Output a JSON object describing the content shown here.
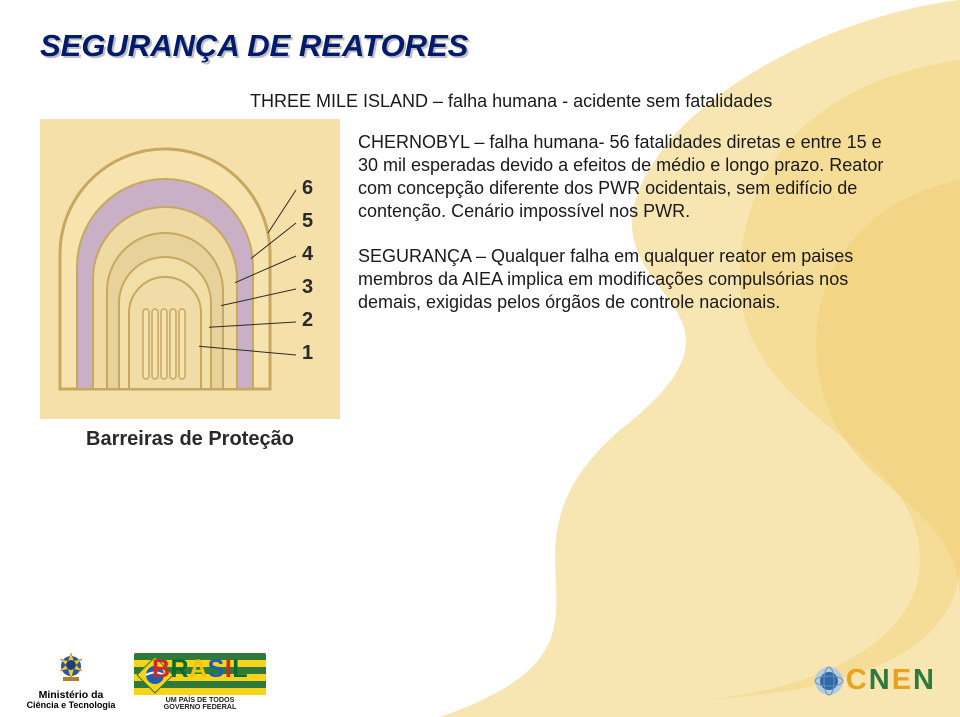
{
  "title": "SEGURANÇA DE REATORES",
  "intro": "THREE MILE ISLAND – falha humana - acidente sem fatalidades",
  "para1": "CHERNOBYL – falha humana- 56 fatalidades diretas e entre 15 e 30 mil esperadas devido a efeitos de médio e longo prazo. Reator com concepção diferente dos PWR ocidentais, sem edifício de contenção. Cenário impossível nos PWR.",
  "para2": "SEGURANÇA – Qualquer falha em qualquer reator em paises membros da AIEA implica em modificações compulsórias nos demais, exigidas pelos órgãos de controle nacionais.",
  "diagram": {
    "caption": "Barreiras de Proteção",
    "bg": "#f4e0a8",
    "outline": "#c8a860",
    "barriers": [
      {
        "fill": "#f6e3ad",
        "num": "6"
      },
      {
        "fill": "#c9b0c6",
        "num": "5"
      },
      {
        "fill": "#efdaa4",
        "num": "4"
      },
      {
        "fill": "#e8d29c",
        "num": "3"
      },
      {
        "fill": "#f2dfa8",
        "num": "2"
      },
      {
        "fill": "#f0dca6",
        "num": "1"
      }
    ],
    "core_fill": "#f5e3ad",
    "label_color": "#2a2a2a"
  },
  "colors": {
    "title": "#001b6b",
    "title_shadow": "#bfbfbf",
    "text": "#1a1a1a",
    "swirl": "#f3d98b",
    "swirl2": "#f7e6b2"
  },
  "footer": {
    "mct_line1": "Ministério da",
    "mct_line2": "Ciência e Tecnologia",
    "brasil_word": "BRASIL",
    "brasil_slogan1": "UM   PAÍS   DE   TODOS",
    "brasil_slogan2": "GOVERNO FEDERAL",
    "brasil_stripes": [
      "#2f7a3a",
      "#f7d417",
      "#2f7a3a",
      "#f7d417",
      "#2f7a3a",
      "#f7d417"
    ],
    "brasil_letter_colors": [
      "#d62428",
      "#0a6b2e",
      "#f0c40f",
      "#1c5fb0",
      "#d62428",
      "#0a6b2e"
    ],
    "cnen_letters": [
      {
        "ch": "C",
        "color": "#e8a31c"
      },
      {
        "ch": "N",
        "color": "#2f7a3a"
      },
      {
        "ch": "E",
        "color": "#e8a31c"
      },
      {
        "ch": "N",
        "color": "#2f7a3a"
      }
    ],
    "globe_outer": "#b7cbe0",
    "globe_inner": "#2f6aa8"
  }
}
